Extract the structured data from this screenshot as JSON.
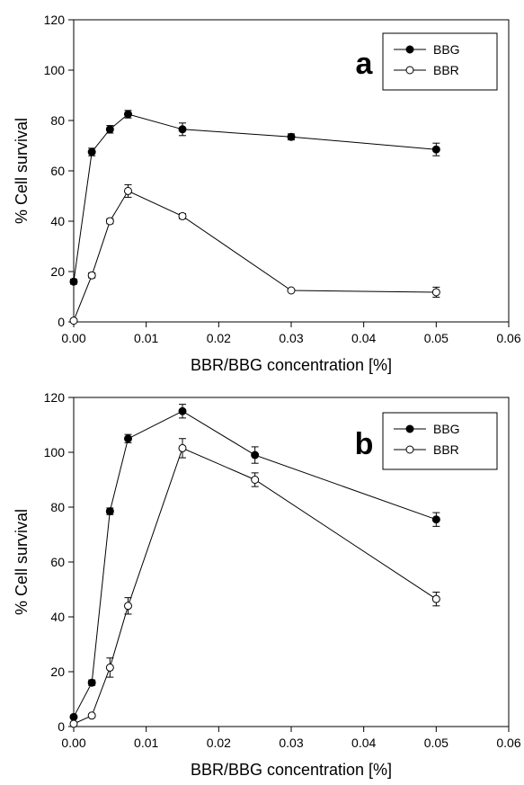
{
  "chart_data": [
    {
      "type": "scatter",
      "panel_label": "a",
      "xlabel": "BBR/BBG concentration [%]",
      "ylabel": "% Cell survival",
      "xlim": [
        0.0,
        0.06
      ],
      "ylim": [
        0,
        120
      ],
      "x_ticks": [
        "0.00",
        "0.01",
        "0.02",
        "0.03",
        "0.04",
        "0.05",
        "0.06"
      ],
      "x_tick_values": [
        0.0,
        0.01,
        0.02,
        0.03,
        0.04,
        0.05,
        0.06
      ],
      "y_ticks": [
        "0",
        "20",
        "40",
        "60",
        "80",
        "100",
        "120"
      ],
      "y_tick_values": [
        0,
        20,
        40,
        60,
        80,
        100,
        120
      ],
      "grid": false,
      "legend_position": "top-right",
      "series": [
        {
          "name": "BBG",
          "marker": "filled",
          "x": [
            0.0,
            0.0025,
            0.005,
            0.0075,
            0.015,
            0.03,
            0.05
          ],
          "y": [
            16,
            67.5,
            76.5,
            82.5,
            76.5,
            73.5,
            68.5
          ],
          "err": [
            1.0,
            1.5,
            1.5,
            1.5,
            2.5,
            1.2,
            2.5
          ]
        },
        {
          "name": "BBR",
          "marker": "open",
          "x": [
            0.0,
            0.0025,
            0.005,
            0.0075,
            0.015,
            0.03,
            0.05
          ],
          "y": [
            0.5,
            18.5,
            40,
            52,
            42,
            12.5,
            11.8
          ],
          "err": [
            0.5,
            1.0,
            1.0,
            2.5,
            1.0,
            0.5,
            2.0
          ]
        }
      ]
    },
    {
      "type": "scatter",
      "panel_label": "b",
      "xlabel": "BBR/BBG concentration [%]",
      "ylabel": "% Cell survival",
      "xlim": [
        0.0,
        0.06
      ],
      "ylim": [
        0,
        120
      ],
      "x_ticks": [
        "0.00",
        "0.01",
        "0.02",
        "0.03",
        "0.04",
        "0.05",
        "0.06"
      ],
      "x_tick_values": [
        0.0,
        0.01,
        0.02,
        0.03,
        0.04,
        0.05,
        0.06
      ],
      "y_ticks": [
        "0",
        "20",
        "40",
        "60",
        "80",
        "100",
        "120"
      ],
      "y_tick_values": [
        0,
        20,
        40,
        60,
        80,
        100,
        120
      ],
      "grid": false,
      "legend_position": "top-right",
      "series": [
        {
          "name": "BBG",
          "marker": "filled",
          "x": [
            0.0,
            0.0025,
            0.005,
            0.0075,
            0.015,
            0.025,
            0.05
          ],
          "y": [
            3.5,
            16,
            78.5,
            105,
            115,
            99,
            75.5
          ],
          "err": [
            0.5,
            1.0,
            1.2,
            1.5,
            2.5,
            3.0,
            2.5
          ]
        },
        {
          "name": "BBR",
          "marker": "open",
          "x": [
            0.0,
            0.0025,
            0.005,
            0.0075,
            0.015,
            0.025,
            0.05
          ],
          "y": [
            1,
            4,
            21.5,
            44,
            101.5,
            90,
            46.5
          ],
          "err": [
            0.5,
            0.5,
            3.5,
            3.0,
            3.5,
            2.5,
            2.5
          ]
        }
      ]
    }
  ]
}
